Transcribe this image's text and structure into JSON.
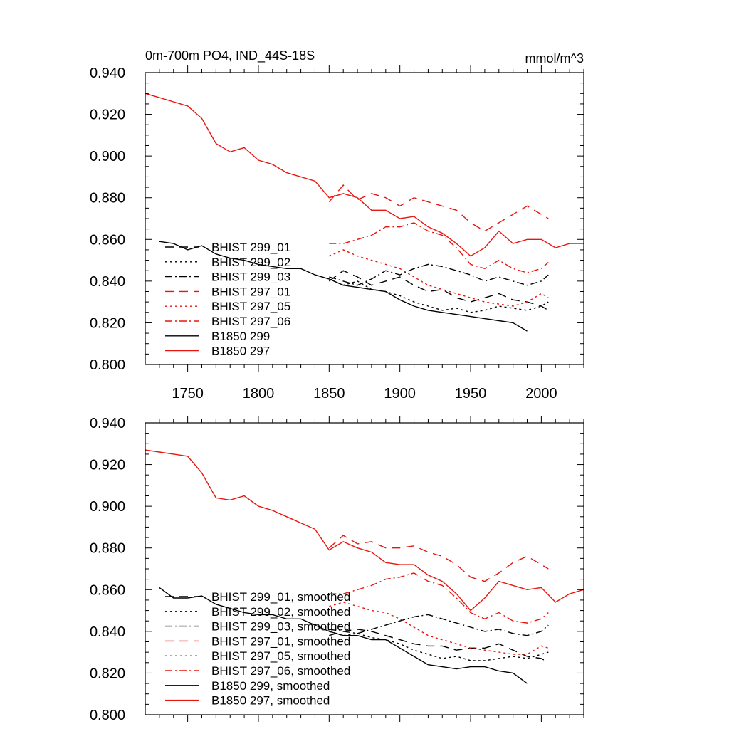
{
  "chart_data": [
    {
      "type": "line",
      "title_left": "0m-700m PO4, IND_44S-18S",
      "title_right": "mmol/m^3",
      "xlim": [
        1720,
        2030
      ],
      "ylim": [
        0.8,
        0.94
      ],
      "xticks": [
        1750,
        1800,
        1850,
        1900,
        1950,
        2000
      ],
      "xtick_labels": [
        "1750",
        "1800",
        "1850",
        "1900",
        "1950",
        "2000"
      ],
      "yticks": [
        0.8,
        0.82,
        0.84,
        0.86,
        0.88,
        0.9,
        0.92,
        0.94
      ],
      "ytick_labels": [
        "0.800",
        "0.820",
        "0.840",
        "0.860",
        "0.880",
        "0.900",
        "0.920",
        "0.940"
      ],
      "series": [
        {
          "name": "BHIST 299_01",
          "color": "#000000",
          "dash": "long-dash",
          "x": [
            1850,
            1860,
            1870,
            1880,
            1890,
            1900,
            1910,
            1920,
            1930,
            1940,
            1950,
            1960,
            1970,
            1980,
            1990,
            2000,
            2005
          ],
          "y": [
            0.84,
            0.845,
            0.842,
            0.838,
            0.84,
            0.842,
            0.838,
            0.835,
            0.836,
            0.832,
            0.83,
            0.832,
            0.834,
            0.831,
            0.83,
            0.828,
            0.826
          ]
        },
        {
          "name": "BHIST 299_02",
          "color": "#000000",
          "dash": "dotted",
          "x": [
            1850,
            1860,
            1870,
            1880,
            1890,
            1900,
            1910,
            1920,
            1930,
            1940,
            1950,
            1960,
            1970,
            1980,
            1990,
            2000,
            2005
          ],
          "y": [
            0.841,
            0.838,
            0.84,
            0.836,
            0.835,
            0.833,
            0.83,
            0.828,
            0.826,
            0.827,
            0.825,
            0.826,
            0.828,
            0.827,
            0.826,
            0.828,
            0.83
          ]
        },
        {
          "name": "BHIST 299_03",
          "color": "#000000",
          "dash": "dash-dot",
          "x": [
            1850,
            1860,
            1870,
            1880,
            1890,
            1900,
            1910,
            1920,
            1930,
            1940,
            1950,
            1960,
            1970,
            1980,
            1990,
            2000,
            2005
          ],
          "y": [
            0.842,
            0.84,
            0.838,
            0.841,
            0.845,
            0.843,
            0.846,
            0.848,
            0.847,
            0.845,
            0.843,
            0.84,
            0.842,
            0.84,
            0.838,
            0.84,
            0.843
          ]
        },
        {
          "name": "BHIST 297_01",
          "color": "#e8160e",
          "dash": "long-dash",
          "x": [
            1850,
            1860,
            1870,
            1880,
            1890,
            1900,
            1910,
            1920,
            1930,
            1940,
            1950,
            1960,
            1970,
            1980,
            1990,
            2000,
            2005
          ],
          "y": [
            0.878,
            0.886,
            0.879,
            0.882,
            0.88,
            0.876,
            0.88,
            0.878,
            0.876,
            0.874,
            0.868,
            0.864,
            0.868,
            0.872,
            0.876,
            0.872,
            0.87
          ]
        },
        {
          "name": "BHIST 297_05",
          "color": "#e8160e",
          "dash": "dotted",
          "x": [
            1850,
            1860,
            1870,
            1880,
            1890,
            1900,
            1910,
            1920,
            1930,
            1940,
            1950,
            1960,
            1970,
            1980,
            1990,
            2000,
            2005
          ],
          "y": [
            0.852,
            0.855,
            0.852,
            0.85,
            0.848,
            0.846,
            0.842,
            0.838,
            0.836,
            0.834,
            0.832,
            0.83,
            0.829,
            0.828,
            0.83,
            0.834,
            0.832
          ]
        },
        {
          "name": "BHIST 297_06",
          "color": "#e8160e",
          "dash": "dash-dot",
          "x": [
            1850,
            1860,
            1870,
            1880,
            1890,
            1900,
            1910,
            1920,
            1930,
            1940,
            1950,
            1960,
            1970,
            1980,
            1990,
            2000,
            2005
          ],
          "y": [
            0.858,
            0.858,
            0.86,
            0.862,
            0.866,
            0.866,
            0.868,
            0.864,
            0.862,
            0.856,
            0.848,
            0.846,
            0.85,
            0.846,
            0.844,
            0.846,
            0.849
          ]
        },
        {
          "name": "B1850 299",
          "color": "#000000",
          "dash": "solid",
          "x": [
            1730,
            1740,
            1750,
            1760,
            1770,
            1780,
            1790,
            1800,
            1810,
            1820,
            1830,
            1840,
            1850,
            1860,
            1870,
            1880,
            1890,
            1900,
            1910,
            1920,
            1930,
            1940,
            1950,
            1960,
            1970,
            1980,
            1990
          ],
          "y": [
            0.859,
            0.858,
            0.855,
            0.857,
            0.853,
            0.851,
            0.85,
            0.848,
            0.847,
            0.846,
            0.846,
            0.843,
            0.841,
            0.838,
            0.837,
            0.836,
            0.835,
            0.831,
            0.828,
            0.826,
            0.825,
            0.824,
            0.823,
            0.822,
            0.821,
            0.82,
            0.816
          ]
        },
        {
          "name": "B1850 297",
          "color": "#e8160e",
          "dash": "solid",
          "x": [
            1720,
            1730,
            1740,
            1750,
            1760,
            1770,
            1780,
            1790,
            1800,
            1810,
            1820,
            1830,
            1840,
            1850,
            1860,
            1870,
            1880,
            1890,
            1900,
            1910,
            1920,
            1930,
            1940,
            1950,
            1960,
            1970,
            1980,
            1990,
            2000,
            2010,
            2020,
            2030
          ],
          "y": [
            0.93,
            0.928,
            0.926,
            0.924,
            0.918,
            0.906,
            0.902,
            0.904,
            0.898,
            0.896,
            0.892,
            0.89,
            0.888,
            0.88,
            0.882,
            0.88,
            0.874,
            0.874,
            0.87,
            0.871,
            0.866,
            0.863,
            0.858,
            0.852,
            0.856,
            0.864,
            0.858,
            0.86,
            0.86,
            0.856,
            0.858,
            0.858
          ]
        }
      ],
      "legend": {
        "position": "lower-left",
        "entries": [
          "BHIST 299_01",
          "BHIST 299_02",
          "BHIST 299_03",
          "BHIST 297_01",
          "BHIST 297_05",
          "BHIST 297_06",
          "B1850 299",
          "B1850 297"
        ]
      }
    },
    {
      "type": "line",
      "xlim": [
        1720,
        2030
      ],
      "ylim": [
        0.8,
        0.94
      ],
      "yticks": [
        0.8,
        0.82,
        0.84,
        0.86,
        0.88,
        0.9,
        0.92,
        0.94
      ],
      "ytick_labels": [
        "0.800",
        "0.820",
        "0.840",
        "0.860",
        "0.880",
        "0.900",
        "0.920",
        "0.940"
      ],
      "series": [
        {
          "name": "BHIST 299_01, smoothed",
          "color": "#000000",
          "dash": "long-dash",
          "x": [
            1850,
            1860,
            1870,
            1880,
            1890,
            1900,
            1910,
            1920,
            1930,
            1940,
            1950,
            1960,
            1970,
            1980,
            1990,
            2000,
            2005
          ],
          "y": [
            0.838,
            0.84,
            0.841,
            0.84,
            0.838,
            0.836,
            0.834,
            0.833,
            0.833,
            0.831,
            0.832,
            0.832,
            0.834,
            0.831,
            0.828,
            0.827,
            0.825
          ]
        },
        {
          "name": "BHIST 299_02, smoothed",
          "color": "#000000",
          "dash": "dotted",
          "x": [
            1850,
            1860,
            1870,
            1880,
            1890,
            1900,
            1910,
            1920,
            1930,
            1940,
            1950,
            1960,
            1970,
            1980,
            1990,
            2000,
            2005
          ],
          "y": [
            0.84,
            0.838,
            0.839,
            0.837,
            0.836,
            0.834,
            0.831,
            0.829,
            0.827,
            0.828,
            0.826,
            0.826,
            0.827,
            0.828,
            0.827,
            0.829,
            0.83
          ]
        },
        {
          "name": "BHIST 299_03, smoothed",
          "color": "#000000",
          "dash": "dash-dot",
          "x": [
            1850,
            1860,
            1870,
            1880,
            1890,
            1900,
            1910,
            1920,
            1930,
            1940,
            1950,
            1960,
            1970,
            1980,
            1990,
            2000,
            2005
          ],
          "y": [
            0.841,
            0.84,
            0.839,
            0.841,
            0.843,
            0.845,
            0.847,
            0.848,
            0.846,
            0.844,
            0.842,
            0.84,
            0.841,
            0.839,
            0.838,
            0.84,
            0.843
          ]
        },
        {
          "name": "BHIST 297_01, smoothed",
          "color": "#e8160e",
          "dash": "long-dash",
          "x": [
            1850,
            1860,
            1870,
            1880,
            1890,
            1900,
            1910,
            1920,
            1930,
            1940,
            1950,
            1960,
            1970,
            1980,
            1990,
            2000,
            2005
          ],
          "y": [
            0.88,
            0.886,
            0.882,
            0.883,
            0.88,
            0.88,
            0.881,
            0.878,
            0.876,
            0.872,
            0.866,
            0.864,
            0.868,
            0.873,
            0.876,
            0.872,
            0.87
          ]
        },
        {
          "name": "BHIST 297_05, smoothed",
          "color": "#e8160e",
          "dash": "dotted",
          "x": [
            1850,
            1860,
            1870,
            1880,
            1890,
            1900,
            1910,
            1920,
            1930,
            1940,
            1950,
            1960,
            1970,
            1980,
            1990,
            2000,
            2005
          ],
          "y": [
            0.852,
            0.854,
            0.852,
            0.85,
            0.849,
            0.846,
            0.842,
            0.838,
            0.836,
            0.834,
            0.832,
            0.831,
            0.83,
            0.829,
            0.829,
            0.833,
            0.832
          ]
        },
        {
          "name": "BHIST 297_06, smoothed",
          "color": "#e8160e",
          "dash": "dash-dot",
          "x": [
            1850,
            1860,
            1870,
            1880,
            1890,
            1900,
            1910,
            1920,
            1930,
            1940,
            1950,
            1960,
            1970,
            1980,
            1990,
            2000,
            2005
          ],
          "y": [
            0.858,
            0.858,
            0.86,
            0.862,
            0.865,
            0.866,
            0.868,
            0.864,
            0.862,
            0.856,
            0.849,
            0.846,
            0.849,
            0.845,
            0.844,
            0.846,
            0.849
          ]
        },
        {
          "name": "B1850 299, smoothed",
          "color": "#000000",
          "dash": "solid",
          "x": [
            1730,
            1740,
            1750,
            1760,
            1770,
            1780,
            1790,
            1800,
            1810,
            1820,
            1830,
            1840,
            1850,
            1860,
            1870,
            1880,
            1890,
            1900,
            1910,
            1920,
            1930,
            1940,
            1950,
            1960,
            1970,
            1980,
            1990
          ],
          "y": [
            0.861,
            0.856,
            0.856,
            0.857,
            0.853,
            0.851,
            0.849,
            0.848,
            0.848,
            0.846,
            0.846,
            0.843,
            0.84,
            0.838,
            0.838,
            0.836,
            0.836,
            0.832,
            0.828,
            0.824,
            0.823,
            0.822,
            0.823,
            0.823,
            0.821,
            0.82,
            0.815
          ]
        },
        {
          "name": "B1850 297, smoothed",
          "color": "#e8160e",
          "dash": "solid",
          "x": [
            1720,
            1730,
            1740,
            1750,
            1760,
            1770,
            1780,
            1790,
            1800,
            1810,
            1820,
            1830,
            1840,
            1850,
            1860,
            1870,
            1880,
            1890,
            1900,
            1910,
            1920,
            1930,
            1940,
            1950,
            1960,
            1970,
            1980,
            1990,
            2000,
            2010,
            2020,
            2030
          ],
          "y": [
            0.927,
            0.926,
            0.925,
            0.924,
            0.916,
            0.904,
            0.903,
            0.905,
            0.9,
            0.898,
            0.895,
            0.892,
            0.889,
            0.879,
            0.883,
            0.88,
            0.878,
            0.873,
            0.872,
            0.872,
            0.867,
            0.864,
            0.858,
            0.85,
            0.856,
            0.864,
            0.862,
            0.86,
            0.861,
            0.854,
            0.858,
            0.86
          ]
        }
      ],
      "legend": {
        "position": "lower-left",
        "entries": [
          "BHIST 299_01, smoothed",
          "BHIST 299_02, smoothed",
          "BHIST 299_03, smoothed",
          "BHIST 297_01, smoothed",
          "BHIST 297_05, smoothed",
          "BHIST 297_06, smoothed",
          "B1850 299, smoothed",
          "B1850 297, smoothed"
        ]
      }
    }
  ]
}
